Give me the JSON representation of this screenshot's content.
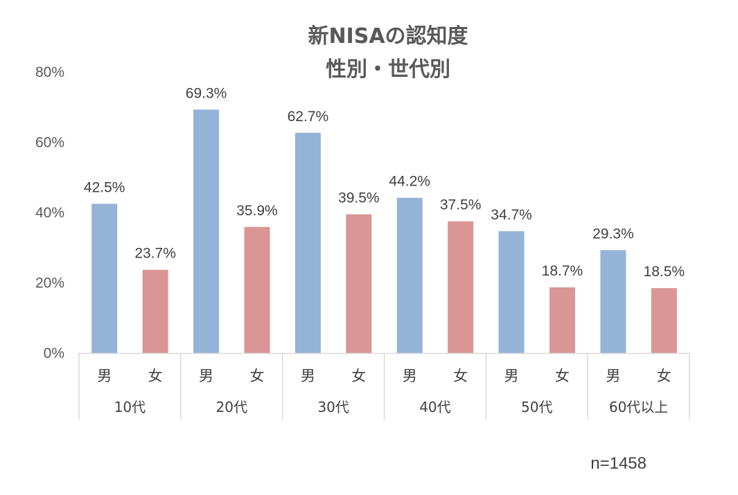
{
  "chart_data": {
    "type": "bar",
    "title_lines": [
      "新NISAの認知度",
      "性別・世代別"
    ],
    "groups": [
      "10代",
      "20代",
      "30代",
      "40代",
      "50代",
      "60代以上"
    ],
    "subcategories": [
      "男",
      "女"
    ],
    "series": [
      {
        "values": [
          42.5,
          69.3,
          62.7,
          44.2,
          34.7,
          29.3
        ],
        "color": "#95B3D7"
      },
      {
        "values": [
          23.7,
          35.9,
          39.5,
          37.5,
          18.7,
          18.5
        ],
        "color": "#D99694"
      }
    ],
    "data_labels": [
      [
        "42.5%",
        "69.3%",
        "62.7%",
        "44.2%",
        "34.7%",
        "29.3%"
      ],
      [
        "23.7%",
        "35.9%",
        "39.5%",
        "37.5%",
        "18.7%",
        "18.5%"
      ]
    ],
    "yticks": [
      0,
      20,
      40,
      60,
      80
    ],
    "ytick_labels": [
      "0%",
      "20%",
      "40%",
      "60%",
      "80%"
    ],
    "ylim": [
      0,
      80
    ],
    "xlabel": "",
    "ylabel": "",
    "grid": false,
    "legend": "none"
  },
  "note": "n=1458"
}
